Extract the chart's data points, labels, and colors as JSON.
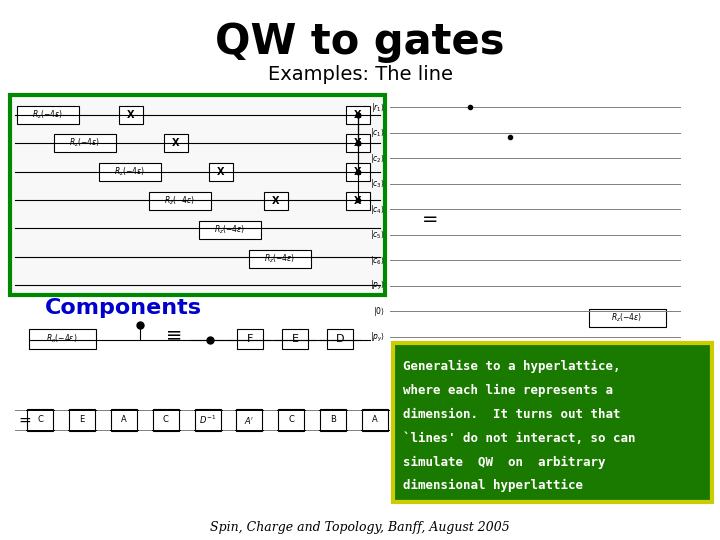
{
  "title": "QW to gates",
  "subtitle": "Examples: The line",
  "components_label": "Components",
  "components_color": "#0000cc",
  "green_box_bg": "#1a7a00",
  "green_box_border": "#cccc00",
  "green_box_text_color": "#ffffff",
  "green_lines": [
    "Generalise to a hyperlattice,",
    "where each line represents a",
    "dimension.  It turns out that",
    "`lines' do not interact, so can",
    "simulate  QW  on  arbitrary",
    "dimensional hyperlattice"
  ],
  "footer_text": "Spin, Charge and Topology, Banff, August 2005",
  "footer_color": "#000000",
  "bg_color": "#ffffff",
  "title_color": "#000000",
  "subtitle_color": "#000000",
  "circuit_box_color": "#008800"
}
